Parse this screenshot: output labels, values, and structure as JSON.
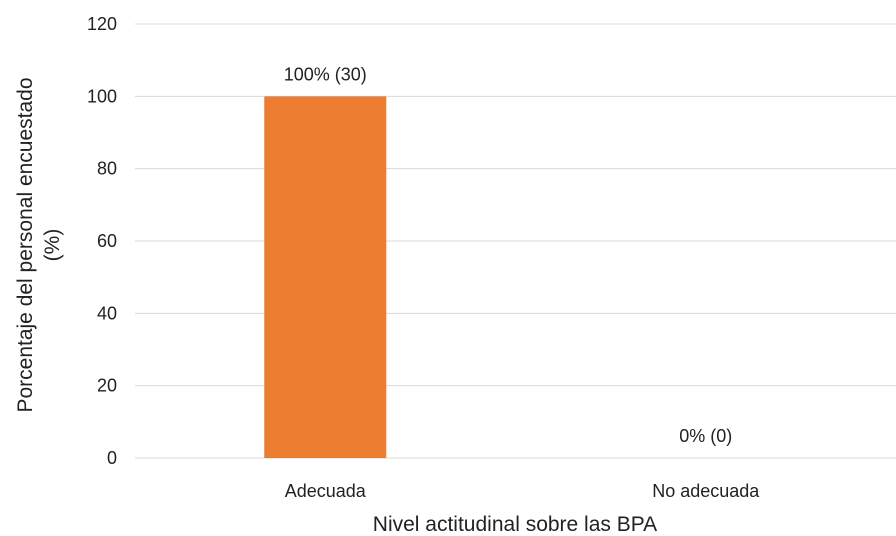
{
  "chart_data": {
    "type": "bar",
    "categories": [
      "Adecuada",
      "No adecuada"
    ],
    "values": [
      100,
      0
    ],
    "data_labels": [
      "100% (30)",
      "0% (0)"
    ],
    "xlabel": "Nivel actitudinal sobre las BPA",
    "ylabel_lines": [
      "Porcentaje del personal encuestado",
      "(%)"
    ],
    "ylim": [
      0,
      120
    ],
    "yticks": [
      0,
      20,
      40,
      60,
      80,
      100,
      120
    ],
    "grid": true,
    "legend": "none",
    "bar_color": "#ED7D31"
  }
}
